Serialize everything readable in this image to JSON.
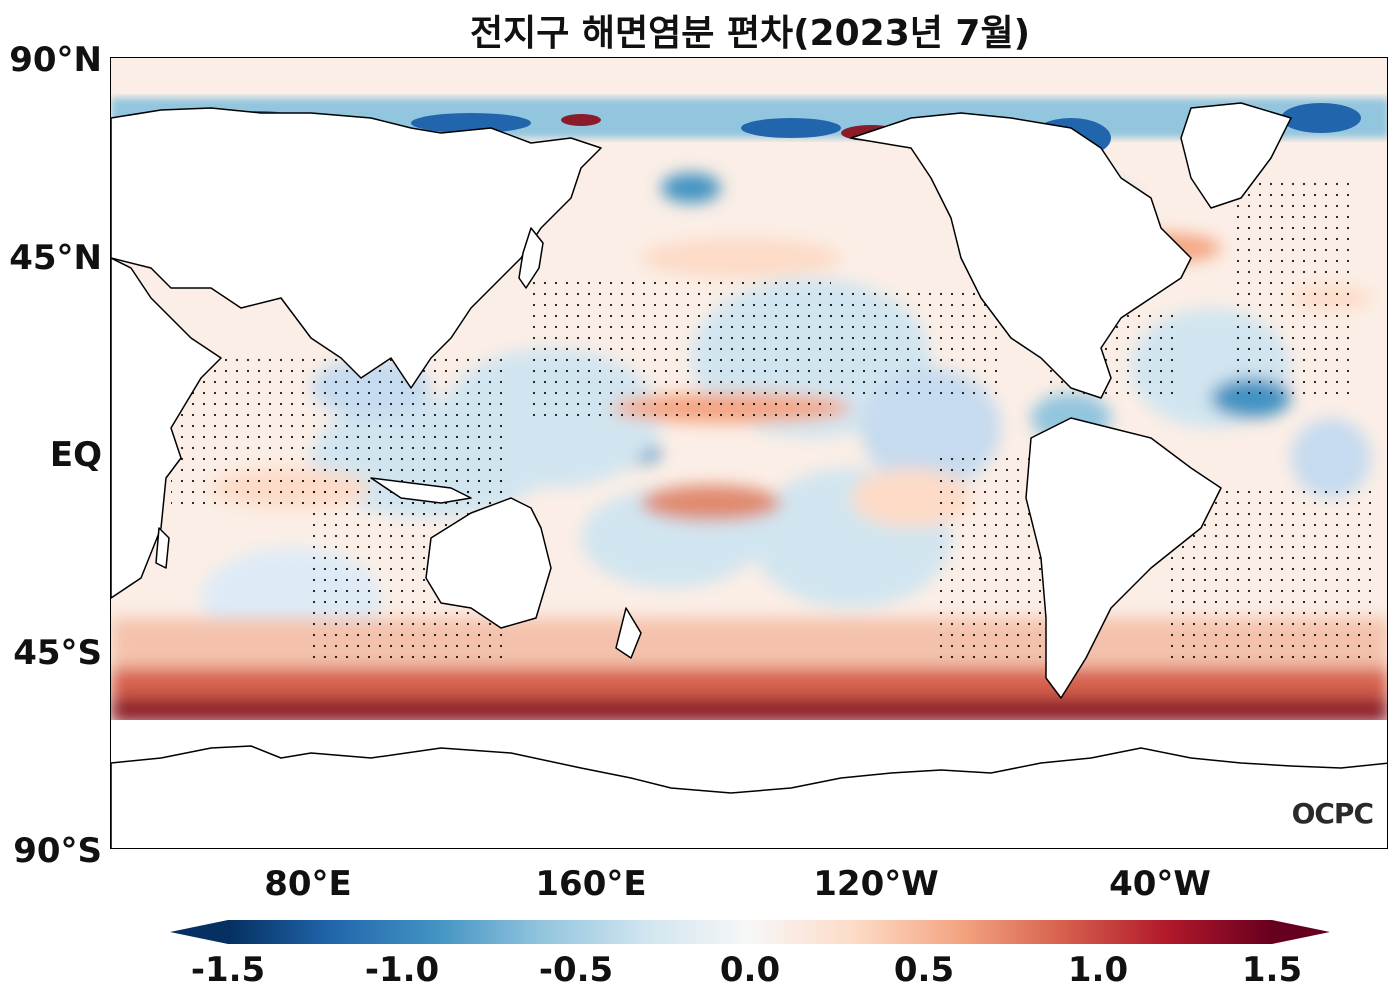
{
  "title": "전지구 해면염분 편차(2023년 7월)",
  "lat_labels": [
    "90°N",
    "45°N",
    "EQ",
    "45°S",
    "90°S"
  ],
  "lon_labels": [
    "80°E",
    "160°E",
    "120°W",
    "40°W"
  ],
  "colorbar": {
    "ticks": [
      "-1.5",
      "-1.0",
      "-0.5",
      "0.0",
      "0.5",
      "1.0",
      "1.5"
    ],
    "min": -1.5,
    "max": 1.5,
    "colors": [
      "#053061",
      "#2166ac",
      "#4393c3",
      "#92c5de",
      "#d1e5f0",
      "#f7f7f7",
      "#fddbc7",
      "#f4a582",
      "#d6604d",
      "#b2182b",
      "#67001f"
    ]
  },
  "logo": "OCPC",
  "colors": {
    "land": "#ffffff",
    "coast": "#000000",
    "stipple": "#000000"
  }
}
